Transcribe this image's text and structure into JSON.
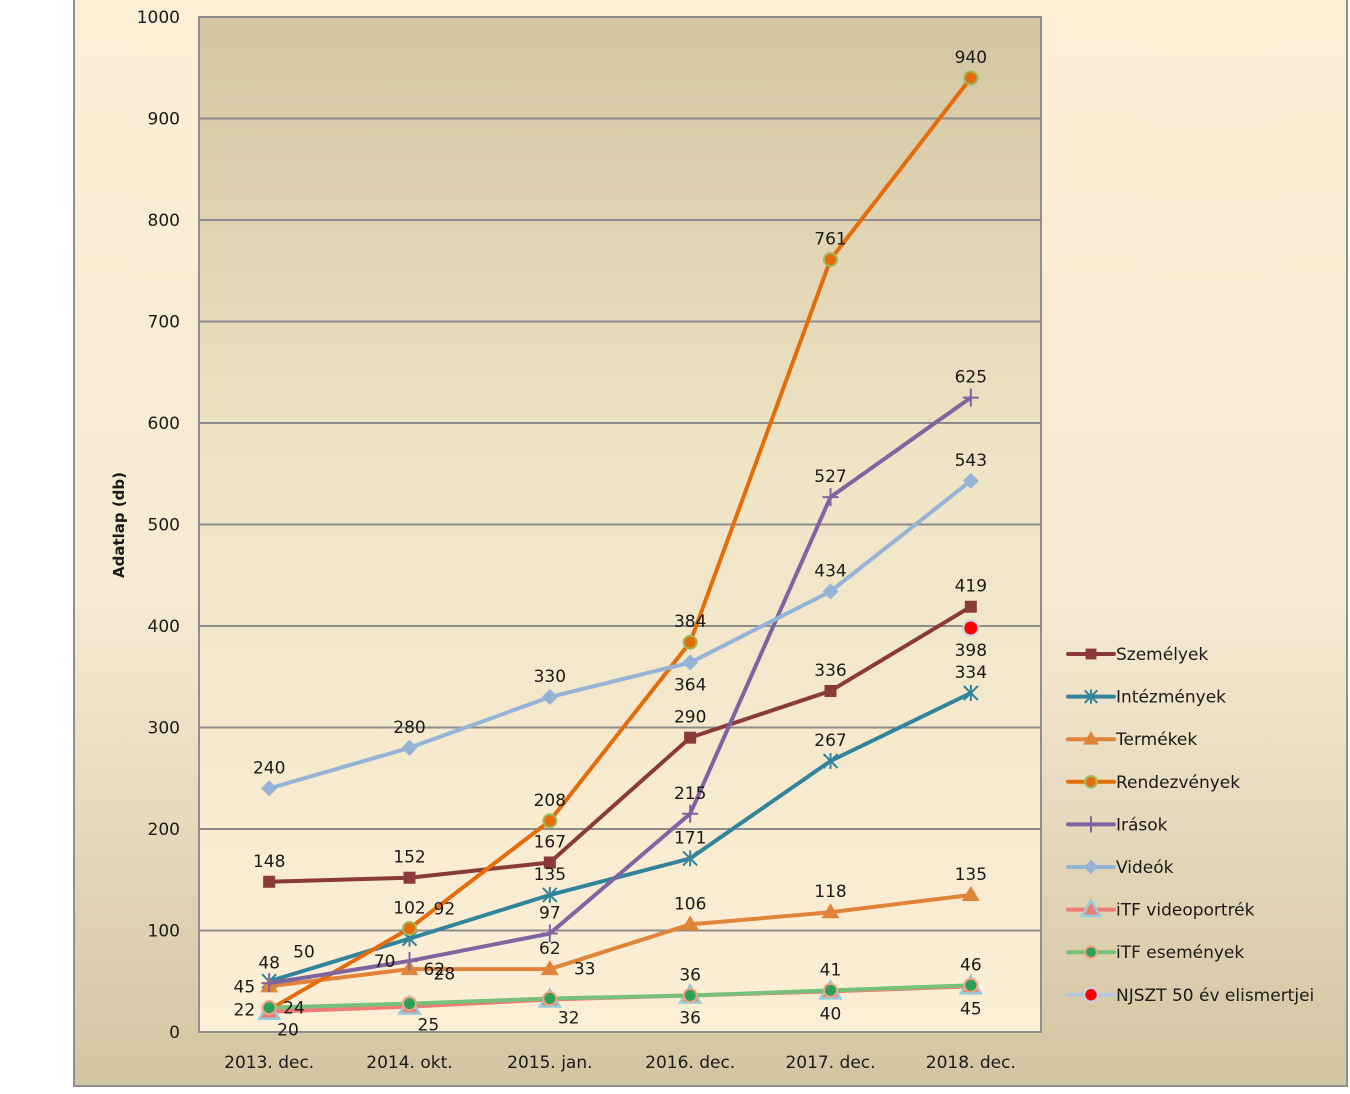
{
  "chart_data": {
    "type": "line",
    "title": "",
    "xlabel": "",
    "ylabel": "Adatlap (db)",
    "ylim": [
      0,
      1000
    ],
    "yticks": [
      0,
      100,
      200,
      300,
      400,
      500,
      600,
      700,
      800,
      900,
      1000
    ],
    "ytick_labels": [
      "0",
      "100",
      "200",
      "300",
      "400",
      "500",
      "600",
      "700",
      "800",
      "900",
      "1000"
    ],
    "grid": true,
    "legend_position": "right",
    "categories": [
      "2013. dec.",
      "2014. okt.",
      "2015. jan.",
      "2016. dec.",
      "2017. dec.",
      "2018. dec."
    ],
    "series": [
      {
        "name": "Személyek",
        "color": "#8b3a3a",
        "marker": "square",
        "values": [
          148,
          152,
          167,
          290,
          336,
          419
        ],
        "label_pos": [
          "above",
          "above",
          "above",
          "above",
          "above",
          "above"
        ]
      },
      {
        "name": "Intézmények",
        "color": "#31849b",
        "marker": "asterisk",
        "values": [
          50,
          92,
          135,
          171,
          267,
          334
        ],
        "label_pos": [
          "upright",
          "upright",
          "above",
          "above",
          "above",
          "above"
        ]
      },
      {
        "name": "Termékek",
        "color": "#e0843a",
        "marker": "triangle",
        "values": [
          45,
          62,
          62,
          106,
          118,
          135
        ],
        "label_pos": [
          "left",
          "right",
          "above",
          "above",
          "above",
          "above"
        ]
      },
      {
        "name": "Rendezvények",
        "color": "#e46c0a",
        "marker": "circle-green-edge",
        "values": [
          22,
          102,
          208,
          384,
          761,
          940
        ],
        "label_pos": [
          "left",
          "above",
          "above",
          "above",
          "above",
          "above"
        ]
      },
      {
        "name": "Irások",
        "color": "#8064a2",
        "marker": "plus",
        "values": [
          48,
          70,
          97,
          215,
          527,
          625
        ],
        "label_pos": [
          "above",
          "left",
          "above",
          "above",
          "above",
          "above"
        ]
      },
      {
        "name": "Videók",
        "color": "#95b3d7",
        "marker": "diamond",
        "values": [
          240,
          280,
          330,
          364,
          434,
          543
        ],
        "label_pos": [
          "above",
          "above",
          "above",
          "below",
          "above",
          "above"
        ]
      },
      {
        "name": "iTF videoportrék",
        "color": "#f07b72",
        "marker": "triangle-blue-edge",
        "values": [
          20,
          25,
          32,
          36,
          40,
          45
        ],
        "label_pos": [
          "belowright",
          "belowright",
          "belowright",
          "below",
          "below",
          "below"
        ]
      },
      {
        "name": "iTF események",
        "color": "#77c07a",
        "marker": "circle-green-fill",
        "values": [
          24,
          28,
          33,
          36,
          41,
          46
        ],
        "label_pos": [
          "right",
          "upright",
          "upright",
          "above",
          "above",
          "above"
        ]
      },
      {
        "name": "NJSZT 50 év elismertjei",
        "color": "#b8c7e0",
        "marker": "circle-red",
        "values": [
          null,
          null,
          null,
          null,
          null,
          398
        ],
        "label_pos": [
          null,
          null,
          null,
          null,
          null,
          "below"
        ]
      }
    ]
  }
}
